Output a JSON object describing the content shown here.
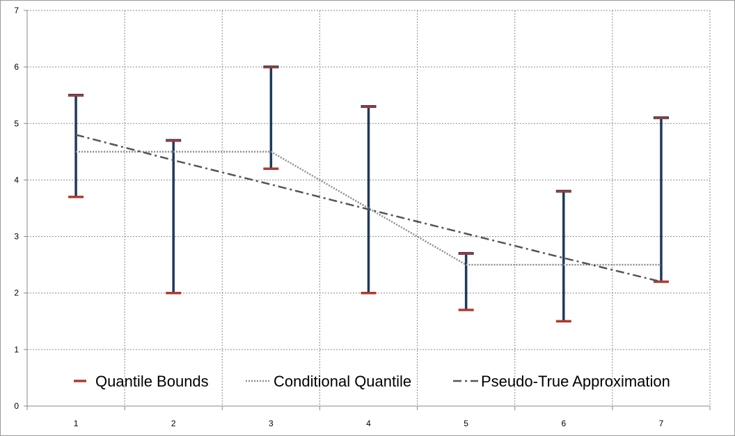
{
  "chart_data": {
    "type": "line",
    "categories": [
      "1",
      "2",
      "3",
      "4",
      "5",
      "6",
      "7"
    ],
    "yticks": [
      "0",
      "1",
      "2",
      "3",
      "4",
      "5",
      "6",
      "7"
    ],
    "ylim": [
      0,
      7
    ],
    "grid": true,
    "legend_position": "bottom",
    "quantile_bounds": {
      "name": "Quantile Bounds",
      "lower": [
        3.7,
        2.0,
        4.2,
        2.0,
        1.7,
        1.5,
        2.2
      ],
      "upper": [
        5.5,
        4.7,
        6.0,
        5.3,
        2.7,
        3.8,
        5.1
      ]
    },
    "series": [
      {
        "name": "Conditional Quantile",
        "values": [
          4.5,
          4.5,
          4.5,
          3.5,
          2.5,
          2.5,
          2.5
        ]
      },
      {
        "name": "Pseudo-True Approximation",
        "values": [
          4.8,
          4.35,
          3.92,
          3.48,
          3.05,
          2.62,
          2.2
        ]
      }
    ]
  },
  "colors": {
    "bound_bar": "#1f3a5a",
    "bound_cap": "#b03a2e",
    "conditional": "#8c8c8c",
    "pseudo_true": "#555555",
    "grid": "#8a8a8a"
  }
}
